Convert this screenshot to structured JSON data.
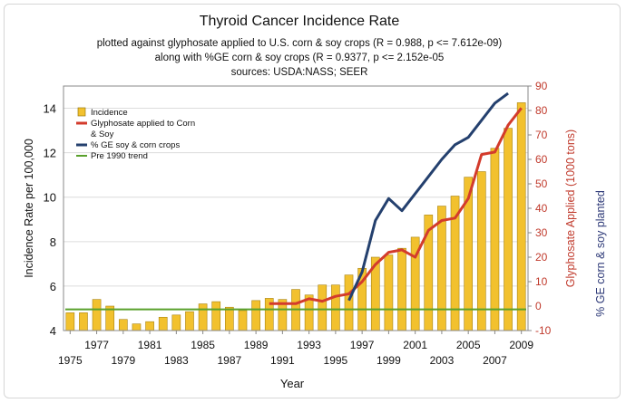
{
  "chart_data": {
    "type": "bar",
    "title": "Thyroid Cancer Incidence Rate",
    "subtitle_lines": [
      "plotted against glyphosate applied to U.S. corn & soy crops (R = 0.988, p <= 7.612e-09)",
      "along with %GE corn & soy crops (R = 0.9377, p <= 2.152e-05",
      "sources: USDA:NASS; SEER"
    ],
    "xlabel": "Year",
    "ylabel_left": "Incidence Rate per 100,000",
    "ylabel_right1": "Glyphosate Applied (1000 tons)",
    "ylabel_right2": "% GE corn & soy planted",
    "x_ticks_bottom": [
      "1975",
      "1979",
      "1983",
      "1987",
      "1991",
      "1995",
      "1999",
      "2003",
      "2007"
    ],
    "x_ticks_top": [
      "1977",
      "1981",
      "1985",
      "1989",
      "1993",
      "1997",
      "2001",
      "2005",
      "2009"
    ],
    "yleft_ticks": [
      "4",
      "6",
      "8",
      "10",
      "12",
      "14"
    ],
    "yleft_lim": [
      4,
      15
    ],
    "yright_ticks": [
      "-10",
      "0",
      "10",
      "20",
      "30",
      "40",
      "50",
      "60",
      "70",
      "80",
      "90"
    ],
    "yright_lim": [
      -10,
      90
    ],
    "years": [
      1975,
      1976,
      1977,
      1978,
      1979,
      1980,
      1981,
      1982,
      1983,
      1984,
      1985,
      1986,
      1987,
      1988,
      1989,
      1990,
      1991,
      1992,
      1993,
      1994,
      1995,
      1996,
      1997,
      1998,
      1999,
      2000,
      2001,
      2002,
      2003,
      2004,
      2005,
      2006,
      2007,
      2008,
      2009
    ],
    "incidence": [
      4.8,
      4.8,
      5.4,
      5.1,
      4.5,
      4.3,
      4.4,
      4.6,
      4.7,
      4.85,
      5.2,
      5.3,
      5.05,
      4.9,
      5.35,
      5.45,
      5.4,
      5.85,
      5.6,
      6.05,
      6.05,
      6.5,
      6.8,
      7.3,
      7.4,
      7.7,
      8.2,
      9.2,
      9.6,
      10.05,
      10.9,
      11.15,
      12.2,
      13.1,
      14.25
    ],
    "series": [
      {
        "name": "Incidence",
        "color": "#f2c12e"
      },
      {
        "name": "Glyphosate applied to Corn & Soy",
        "color": "#d33b2c",
        "x": [
          1990,
          1991,
          1992,
          1993,
          1994,
          1995,
          1996,
          1997,
          1998,
          1999,
          2000,
          2001,
          2002,
          2003,
          2004,
          2005,
          2006,
          2007,
          2008,
          2009
        ],
        "values": [
          1,
          1,
          1,
          3,
          2,
          4,
          5,
          10,
          17,
          22,
          23,
          20,
          31,
          35,
          36,
          44,
          62,
          63,
          74,
          81
        ]
      },
      {
        "name": "% GE soy & corn crops",
        "color": "#24406e",
        "x": [
          1996,
          1997,
          1998,
          1999,
          2000,
          2001,
          2002,
          2003,
          2004,
          2005,
          2006,
          2007,
          2008
        ],
        "values": [
          2.3,
          14,
          35,
          44,
          39,
          46,
          53,
          60,
          66,
          69,
          76,
          83,
          87
        ]
      },
      {
        "name": "Pre 1990 trend",
        "color": "#59a02b",
        "values": [
          4.95,
          4.95
        ]
      }
    ],
    "legend": [
      "Incidence",
      "Glyphosate applied to Corn",
      "& Soy",
      "% GE soy & corn crops",
      "Pre 1990 trend"
    ],
    "legend_position": "top-left",
    "grid": true
  }
}
